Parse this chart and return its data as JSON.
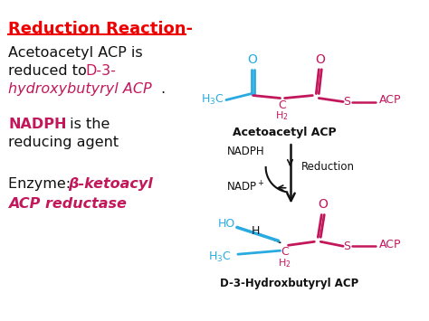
{
  "bg": "#ffffff",
  "cyan": "#29ABE2",
  "pink": "#C2185B",
  "black": "#111111",
  "red": "#EE0000",
  "title": "Reduction Reaction-",
  "l1": "Acetoacetyl ACP is",
  "l2a": "reduced to ",
  "l2b": "D-3-",
  "l3a": "hydroxybutyryl ACP",
  "l3b": ".",
  "l4a": "NADPH",
  "l4b": " is the",
  "l5": "reducing agent",
  "l6a": "Enzyme: ",
  "l6b": "β-ketoacyl",
  "l7": "ACP reductase",
  "label_top": "Acetoacetyl ACP",
  "label_bot": "D-3-Hydroxbutyryl ACP",
  "nadph": "NADPH",
  "nadp": "NADP$^+$",
  "reduction": "Reduction",
  "acp": "ACP"
}
